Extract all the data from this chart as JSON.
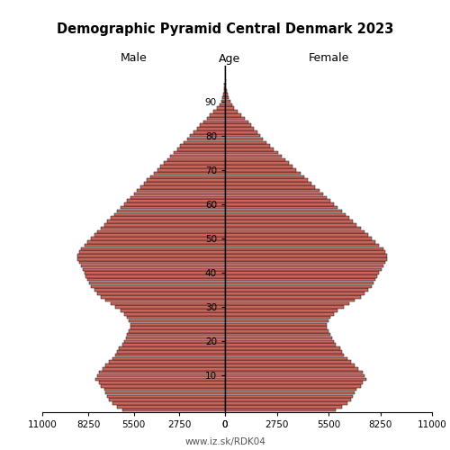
{
  "title": "Demographic Pyramid Central Denmark 2023",
  "male_label": "Male",
  "female_label": "Female",
  "age_label": "Age",
  "footer": "www.iz.sk/RDK04",
  "xlim": 11000,
  "xticks_left": [
    -11000,
    -8250,
    -5500,
    -2750,
    0
  ],
  "xtick_labels_left": [
    "11000",
    "8250",
    "5500",
    "2750",
    "0"
  ],
  "xticks_right": [
    0,
    2750,
    5500,
    8250,
    11000
  ],
  "xtick_labels_right": [
    "0",
    "2750",
    "5500",
    "8250",
    "11000"
  ],
  "ytick_positions": [
    10,
    20,
    30,
    40,
    50,
    60,
    70,
    80,
    90
  ],
  "bar_color": "#c8645a",
  "bar_edge_color": "#111111",
  "bar_linewidth": 0.35,
  "male": [
    6200,
    6500,
    6800,
    7000,
    7100,
    7200,
    7300,
    7500,
    7600,
    7800,
    7700,
    7600,
    7400,
    7200,
    7000,
    6800,
    6600,
    6500,
    6400,
    6200,
    6100,
    6000,
    5900,
    5800,
    5700,
    5700,
    5800,
    5900,
    6100,
    6300,
    6600,
    6900,
    7200,
    7500,
    7700,
    7900,
    8100,
    8200,
    8300,
    8400,
    8500,
    8600,
    8700,
    8800,
    8900,
    8900,
    8800,
    8700,
    8500,
    8300,
    8100,
    7900,
    7700,
    7500,
    7300,
    7100,
    6900,
    6700,
    6500,
    6300,
    6100,
    5900,
    5700,
    5500,
    5300,
    5100,
    4900,
    4700,
    4500,
    4300,
    4100,
    3900,
    3700,
    3500,
    3300,
    3100,
    2900,
    2700,
    2500,
    2300,
    2100,
    1900,
    1700,
    1500,
    1300,
    1100,
    900,
    700,
    500,
    350,
    230,
    160,
    110,
    70,
    45,
    28,
    18,
    11,
    7,
    4,
    2
  ],
  "female": [
    5900,
    6200,
    6500,
    6700,
    6800,
    6900,
    7000,
    7200,
    7300,
    7500,
    7400,
    7300,
    7100,
    6900,
    6700,
    6500,
    6300,
    6200,
    6100,
    5900,
    5800,
    5700,
    5600,
    5500,
    5400,
    5400,
    5500,
    5600,
    5800,
    6000,
    6300,
    6600,
    6900,
    7200,
    7400,
    7600,
    7800,
    7900,
    8000,
    8100,
    8200,
    8300,
    8400,
    8500,
    8600,
    8600,
    8500,
    8400,
    8200,
    8000,
    7800,
    7600,
    7400,
    7200,
    7000,
    6800,
    6600,
    6400,
    6200,
    6000,
    5800,
    5600,
    5400,
    5200,
    5000,
    4800,
    4600,
    4400,
    4200,
    4000,
    3800,
    3600,
    3400,
    3200,
    3000,
    2800,
    2600,
    2400,
    2200,
    2000,
    1850,
    1700,
    1550,
    1400,
    1250,
    1050,
    850,
    650,
    500,
    370,
    270,
    200,
    145,
    100,
    68,
    45,
    30,
    20,
    13,
    8,
    5
  ]
}
